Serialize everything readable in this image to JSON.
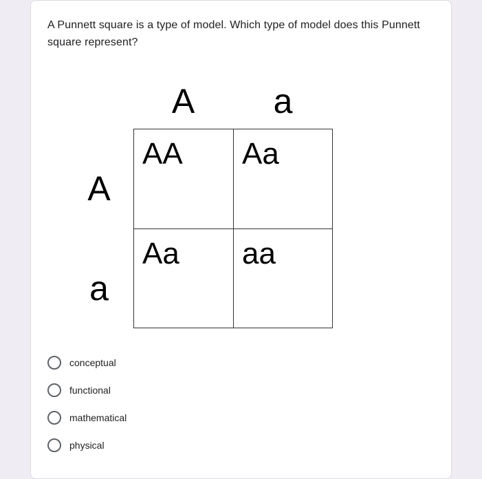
{
  "card": {
    "background": "#ffffff",
    "border_color": "#dadce0",
    "border_radius": 8
  },
  "page_background": "#f0ecf4",
  "question": {
    "text": "A Punnett square is a type of model. Which type of model does this Punnett square represent?",
    "font_size": 16,
    "color": "#202124"
  },
  "punnett": {
    "col_headers": [
      "A",
      "a"
    ],
    "row_headers": [
      "A",
      "a"
    ],
    "cells": [
      [
        "AA",
        "Aa"
      ],
      [
        "Aa",
        "aa"
      ]
    ],
    "header_font_size": 50,
    "cell_font_size": 44,
    "border_color": "#333333",
    "text_color": "#000000"
  },
  "options": {
    "items": [
      {
        "label": "conceptual",
        "selected": false
      },
      {
        "label": "functional",
        "selected": false
      },
      {
        "label": "mathematical",
        "selected": false
      },
      {
        "label": "physical",
        "selected": false
      }
    ],
    "radio_border_color": "#5f6368",
    "label_font_size": 14,
    "label_color": "#202124"
  }
}
